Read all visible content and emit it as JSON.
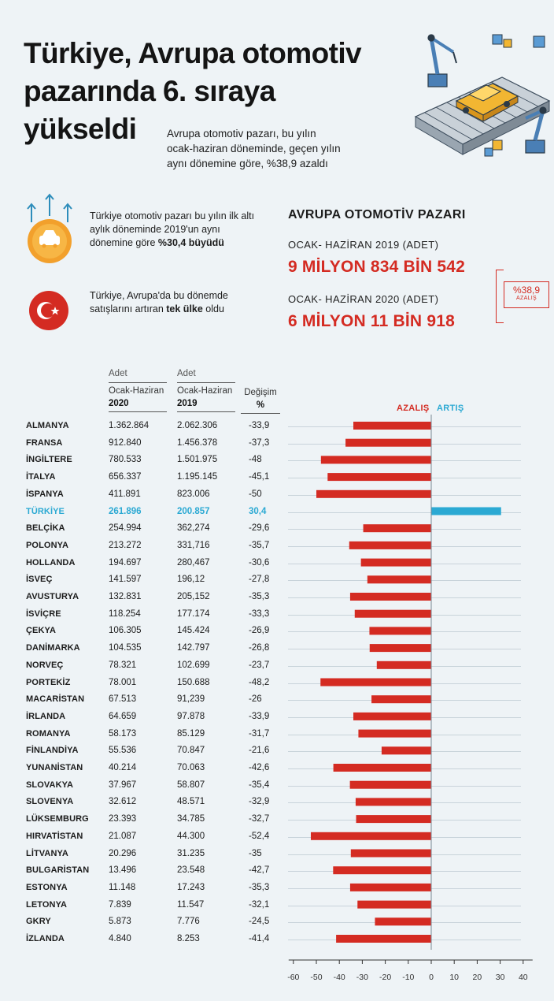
{
  "header": {
    "title": "Türkiye, Avrupa otomotiv\npazarında 6. sıraya\nyükseldi",
    "subtitle": "Avrupa otomotiv pazarı, bu yılın\nocak-haziran döneminde, geçen yılın\naynı dönemine göre, %38,9 azaldı"
  },
  "info1": {
    "text": "Türkiye otomotiv pazarı bu yılın ilk altı aylık döneminde 2019'un aynı dönemine göre ",
    "bold": "%30,4 büyüdü"
  },
  "info2": {
    "text": "Türkiye, Avrupa'da bu dönemde satışlarını artıran ",
    "bold": "tek ülke",
    "text_end": " oldu"
  },
  "market": {
    "title": "AVRUPA OTOMOTİV PAZARI",
    "label_2019": "OCAK- HAZİRAN 2019 (ADET)",
    "value_2019": "9 MİLYON 834 BİN 542",
    "label_2020": "OCAK- HAZİRAN 2020 (ADET)",
    "value_2020": "6 MİLYON 11 BİN 918",
    "change_value": "%38,9",
    "change_label": "AZALIŞ"
  },
  "table_headers": {
    "col1_top": "Adet",
    "col1_mid": "Ocak-Haziran",
    "col1_year": "2020",
    "col2_top": "Adet",
    "col2_mid": "Ocak-Haziran",
    "col2_year": "2019",
    "col3_mid": "Değişim",
    "col3_unit": "%"
  },
  "legend": {
    "decrease": "AZALIŞ",
    "increase": "ARTIŞ"
  },
  "colors": {
    "decrease": "#d42b22",
    "increase": "#2ba9d3",
    "highlight": "#2ba9d3"
  },
  "chart_data": {
    "type": "bar",
    "orientation": "horizontal",
    "title": "",
    "xlabel": "Değişim %",
    "xlim": [
      -60,
      40
    ],
    "xticks": [
      -60,
      -50,
      -40,
      -30,
      -20,
      -10,
      0,
      10,
      20,
      30,
      40
    ],
    "tick_labels": [
      "-60",
      "-50",
      "-40",
      "-30",
      "-20",
      "-10",
      "0",
      "10",
      "20",
      "30",
      "40"
    ],
    "rows": [
      {
        "country": "ALMANYA",
        "v2020": "1.362.864",
        "v2019": "2.062.306",
        "change": "-33,9",
        "value": -33.9
      },
      {
        "country": "FRANSA",
        "v2020": "912.840",
        "v2019": "1.456.378",
        "change": "-37,3",
        "value": -37.3
      },
      {
        "country": "İNGİLTERE",
        "v2020": "780.533",
        "v2019": "1.501.975",
        "change": "-48",
        "value": -48
      },
      {
        "country": "İTALYA",
        "v2020": "656.337",
        "v2019": "1.195.145",
        "change": "-45,1",
        "value": -45.1
      },
      {
        "country": "İSPANYA",
        "v2020": "411.891",
        "v2019": "823.006",
        "change": "-50",
        "value": -50
      },
      {
        "country": "TÜRKİYE",
        "v2020": "261.896",
        "v2019": "200.857",
        "change": "30,4",
        "value": 30.4,
        "highlight": true
      },
      {
        "country": "BELÇİKA",
        "v2020": "254.994",
        "v2019": "362,274",
        "change": "-29,6",
        "value": -29.6
      },
      {
        "country": "POLONYA",
        "v2020": "213.272",
        "v2019": "331,716",
        "change": "-35,7",
        "value": -35.7
      },
      {
        "country": "HOLLANDA",
        "v2020": "194.697",
        "v2019": "280,467",
        "change": "-30,6",
        "value": -30.6
      },
      {
        "country": "İSVEÇ",
        "v2020": "141.597",
        "v2019": "196,12",
        "change": "-27,8",
        "value": -27.8
      },
      {
        "country": "AVUSTURYA",
        "v2020": "132.831",
        "v2019": "205,152",
        "change": "-35,3",
        "value": -35.3
      },
      {
        "country": "İSVİÇRE",
        "v2020": "118.254",
        "v2019": "177.174",
        "change": "-33,3",
        "value": -33.3
      },
      {
        "country": "ÇEKYA",
        "v2020": "106.305",
        "v2019": "145.424",
        "change": "-26,9",
        "value": -26.9
      },
      {
        "country": "DANİMARKA",
        "v2020": "104.535",
        "v2019": "142.797",
        "change": "-26,8",
        "value": -26.8
      },
      {
        "country": "NORVEÇ",
        "v2020": "78.321",
        "v2019": "102.699",
        "change": "-23,7",
        "value": -23.7
      },
      {
        "country": "PORTEKİZ",
        "v2020": "78.001",
        "v2019": "150.688",
        "change": "-48,2",
        "value": -48.2
      },
      {
        "country": "MACARİSTAN",
        "v2020": "67.513",
        "v2019": "91,239",
        "change": "-26",
        "value": -26
      },
      {
        "country": "İRLANDA",
        "v2020": "64.659",
        "v2019": "97.878",
        "change": "-33,9",
        "value": -33.9
      },
      {
        "country": "ROMANYA",
        "v2020": "58.173",
        "v2019": "85.129",
        "change": "-31,7",
        "value": -31.7
      },
      {
        "country": "FİNLANDİYA",
        "v2020": "55.536",
        "v2019": "70.847",
        "change": "-21,6",
        "value": -21.6
      },
      {
        "country": "YUNANİSTAN",
        "v2020": "40.214",
        "v2019": "70.063",
        "change": "-42,6",
        "value": -42.6
      },
      {
        "country": "SLOVAKYA",
        "v2020": "37.967",
        "v2019": "58.807",
        "change": "-35,4",
        "value": -35.4
      },
      {
        "country": "SLOVENYA",
        "v2020": "32.612",
        "v2019": "48.571",
        "change": "-32,9",
        "value": -32.9
      },
      {
        "country": "LÜKSEMBURG",
        "v2020": "23.393",
        "v2019": "34.785",
        "change": "-32,7",
        "value": -32.7
      },
      {
        "country": "HIRVATİSTAN",
        "v2020": "21.087",
        "v2019": "44.300",
        "change": "-52,4",
        "value": -52.4
      },
      {
        "country": "LİTVANYA",
        "v2020": "20.296",
        "v2019": "31.235",
        "change": "-35",
        "value": -35
      },
      {
        "country": "BULGARİSTAN",
        "v2020": "13.496",
        "v2019": "23.548",
        "change": "-42,7",
        "value": -42.7
      },
      {
        "country": "ESTONYA",
        "v2020": "11.148",
        "v2019": "17.243",
        "change": "-35,3",
        "value": -35.3
      },
      {
        "country": "LETONYA",
        "v2020": "7.839",
        "v2019": "11.547",
        "change": "-32,1",
        "value": -32.1
      },
      {
        "country": "GKRY",
        "v2020": "5.873",
        "v2019": "7.776",
        "change": "-24,5",
        "value": -24.5
      },
      {
        "country": "İZLANDA",
        "v2020": "4.840",
        "v2019": "8.253",
        "change": "-41,4",
        "value": -41.4
      }
    ]
  }
}
